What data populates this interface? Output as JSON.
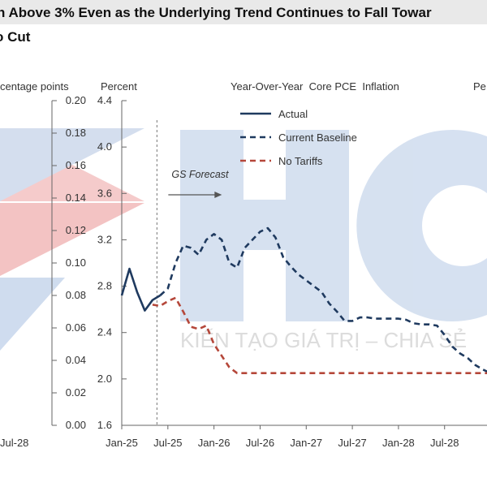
{
  "title_line1": "n Above 3% Even as the Underlying Trend Continues to Fall Towar",
  "title_line2": "o Cut",
  "watermark": {
    "letters": "HC",
    "tagline": "KIẾN TẠO GIÁ TRỊ – CHIA SẺ",
    "colors": {
      "blue": "#b8cde8",
      "red": "#f2b9b9"
    }
  },
  "chart_data": [
    {
      "type": "line",
      "title": "",
      "ylabel": "centage points",
      "ylim": [
        0.0,
        0.2
      ],
      "yticks": [
        "0.00",
        "0.02",
        "0.04",
        "0.06",
        "0.08",
        "0.10",
        "0.12",
        "0.14",
        "0.16",
        "0.18",
        "0.20"
      ],
      "xticks": [
        "Jul-28"
      ],
      "series": []
    },
    {
      "type": "line",
      "title": "Year-Over-Year  Core PCE  Inflation",
      "ylabel": "Percent",
      "right_ylabel": "Pe",
      "ylim": [
        1.6,
        4.4
      ],
      "yticks": [
        "1.6",
        "2.0",
        "2.4",
        "2.8",
        "3.2",
        "3.6",
        "4.0",
        "4.4"
      ],
      "xticks": [
        "Jan-25",
        "Jul-25",
        "Jan-26",
        "Jul-26",
        "Jan-27",
        "Jul-27",
        "Jan-28",
        "Jul-28"
      ],
      "x_unit": "months since Jan-25",
      "annotation": "GS Forecast",
      "forecast_start_month": 5,
      "series": [
        {
          "name": "Actual",
          "color": "#1f3a5f",
          "style": "solid",
          "points": [
            [
              0,
              2.72
            ],
            [
              1,
              2.95
            ],
            [
              2,
              2.75
            ],
            [
              3,
              2.59
            ],
            [
              4,
              2.68
            ],
            [
              5,
              2.72
            ]
          ]
        },
        {
          "name": "Current Baseline",
          "color": "#1f3a5f",
          "style": "dashed",
          "points": [
            [
              5,
              2.72
            ],
            [
              6,
              2.78
            ],
            [
              7,
              3.0
            ],
            [
              8,
              3.15
            ],
            [
              9,
              3.13
            ],
            [
              10,
              3.07
            ],
            [
              11,
              3.2
            ],
            [
              12,
              3.25
            ],
            [
              13,
              3.2
            ],
            [
              14,
              3.0
            ],
            [
              15,
              2.96
            ],
            [
              16,
              3.13
            ],
            [
              17,
              3.2
            ],
            [
              18,
              3.27
            ],
            [
              19,
              3.3
            ],
            [
              20,
              3.22
            ],
            [
              21,
              3.05
            ],
            [
              22,
              2.97
            ],
            [
              23,
              2.9
            ],
            [
              24,
              2.85
            ],
            [
              25,
              2.8
            ],
            [
              26,
              2.75
            ],
            [
              27,
              2.65
            ],
            [
              28,
              2.58
            ],
            [
              29,
              2.5
            ],
            [
              30,
              2.5
            ],
            [
              31,
              2.53
            ],
            [
              32,
              2.53
            ],
            [
              33,
              2.52
            ],
            [
              34,
              2.52
            ],
            [
              35,
              2.52
            ],
            [
              36,
              2.52
            ],
            [
              37,
              2.51
            ],
            [
              38,
              2.48
            ],
            [
              39,
              2.47
            ],
            [
              40,
              2.47
            ],
            [
              41,
              2.46
            ],
            [
              42,
              2.38
            ],
            [
              43,
              2.28
            ],
            [
              44,
              2.22
            ],
            [
              45,
              2.18
            ],
            [
              46,
              2.12
            ],
            [
              47,
              2.08
            ],
            [
              48,
              2.05
            ],
            [
              49,
              2.05
            ],
            [
              50,
              2.05
            ],
            [
              51,
              2.05
            ]
          ]
        },
        {
          "name": "No Tariffs",
          "color": "#b5473a",
          "style": "dashed",
          "points": [
            [
              4,
              2.64
            ],
            [
              5,
              2.63
            ],
            [
              6,
              2.67
            ],
            [
              7,
              2.7
            ],
            [
              8,
              2.58
            ],
            [
              9,
              2.45
            ],
            [
              10,
              2.43
            ],
            [
              11,
              2.46
            ],
            [
              12,
              2.3
            ],
            [
              13,
              2.2
            ],
            [
              14,
              2.1
            ],
            [
              15,
              2.05
            ],
            [
              16,
              2.05
            ],
            [
              20,
              2.05
            ],
            [
              30,
              2.05
            ],
            [
              40,
              2.05
            ],
            [
              51,
              2.05
            ]
          ]
        }
      ]
    }
  ]
}
